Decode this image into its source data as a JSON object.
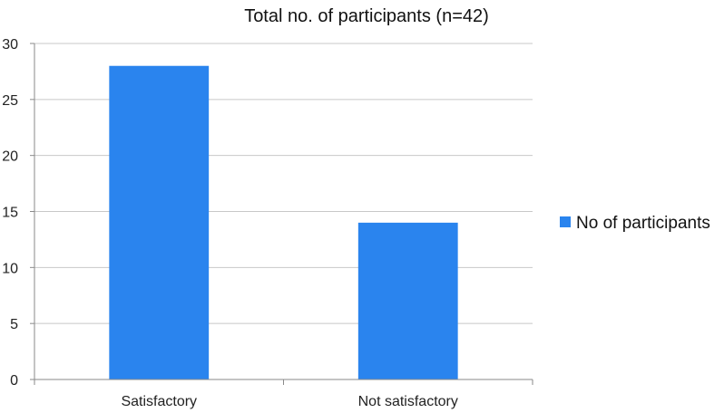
{
  "chart_data": {
    "type": "bar",
    "title": "Total no. of participants (n=42)",
    "categories": [
      "Satisfactory",
      "Not satisfactory"
    ],
    "series": [
      {
        "name": "No of participants",
        "values": [
          28,
          14
        ],
        "color": "#2a84ee"
      }
    ],
    "xlabel": "",
    "ylabel": "",
    "ylim": [
      0,
      30
    ],
    "yticks": [
      0,
      5,
      10,
      15,
      20,
      25,
      30
    ],
    "grid": true,
    "legend_position": "right"
  }
}
